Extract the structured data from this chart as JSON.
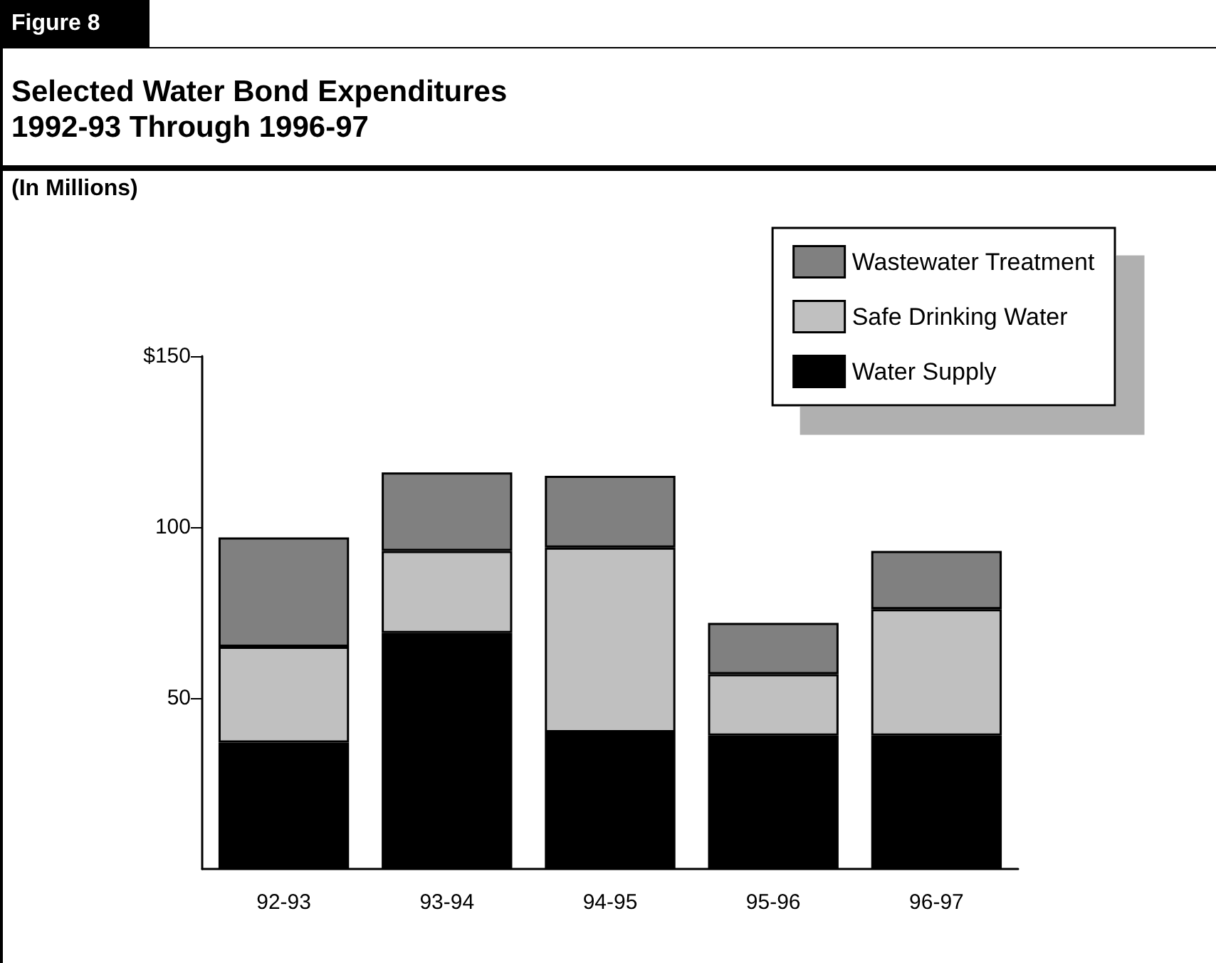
{
  "chart_data": {
    "type": "bar",
    "title": "Selected Water Bond Expenditures\n1992-93 Through 1996-97",
    "annotations": [
      "Figure 8",
      "(In Millions)"
    ],
    "categories": [
      "92-93",
      "93-94",
      "94-95",
      "95-96",
      "96-97"
    ],
    "stacked": true,
    "series": [
      {
        "name": "Water Supply",
        "color": "#000000",
        "values": [
          37,
          69,
          40,
          39,
          39
        ]
      },
      {
        "name": "Safe Drinking Water",
        "color": "#c0c0c0",
        "values": [
          28,
          24,
          54,
          18,
          37
        ]
      },
      {
        "name": "Wastewater Treatment",
        "color": "#808080",
        "values": [
          32,
          23,
          21,
          15,
          17
        ]
      }
    ],
    "ylim": [
      0,
      150
    ],
    "yticks": [
      50,
      100,
      {
        "value": 150,
        "label": "$150"
      }
    ],
    "grid": false,
    "legend": "top right"
  }
}
